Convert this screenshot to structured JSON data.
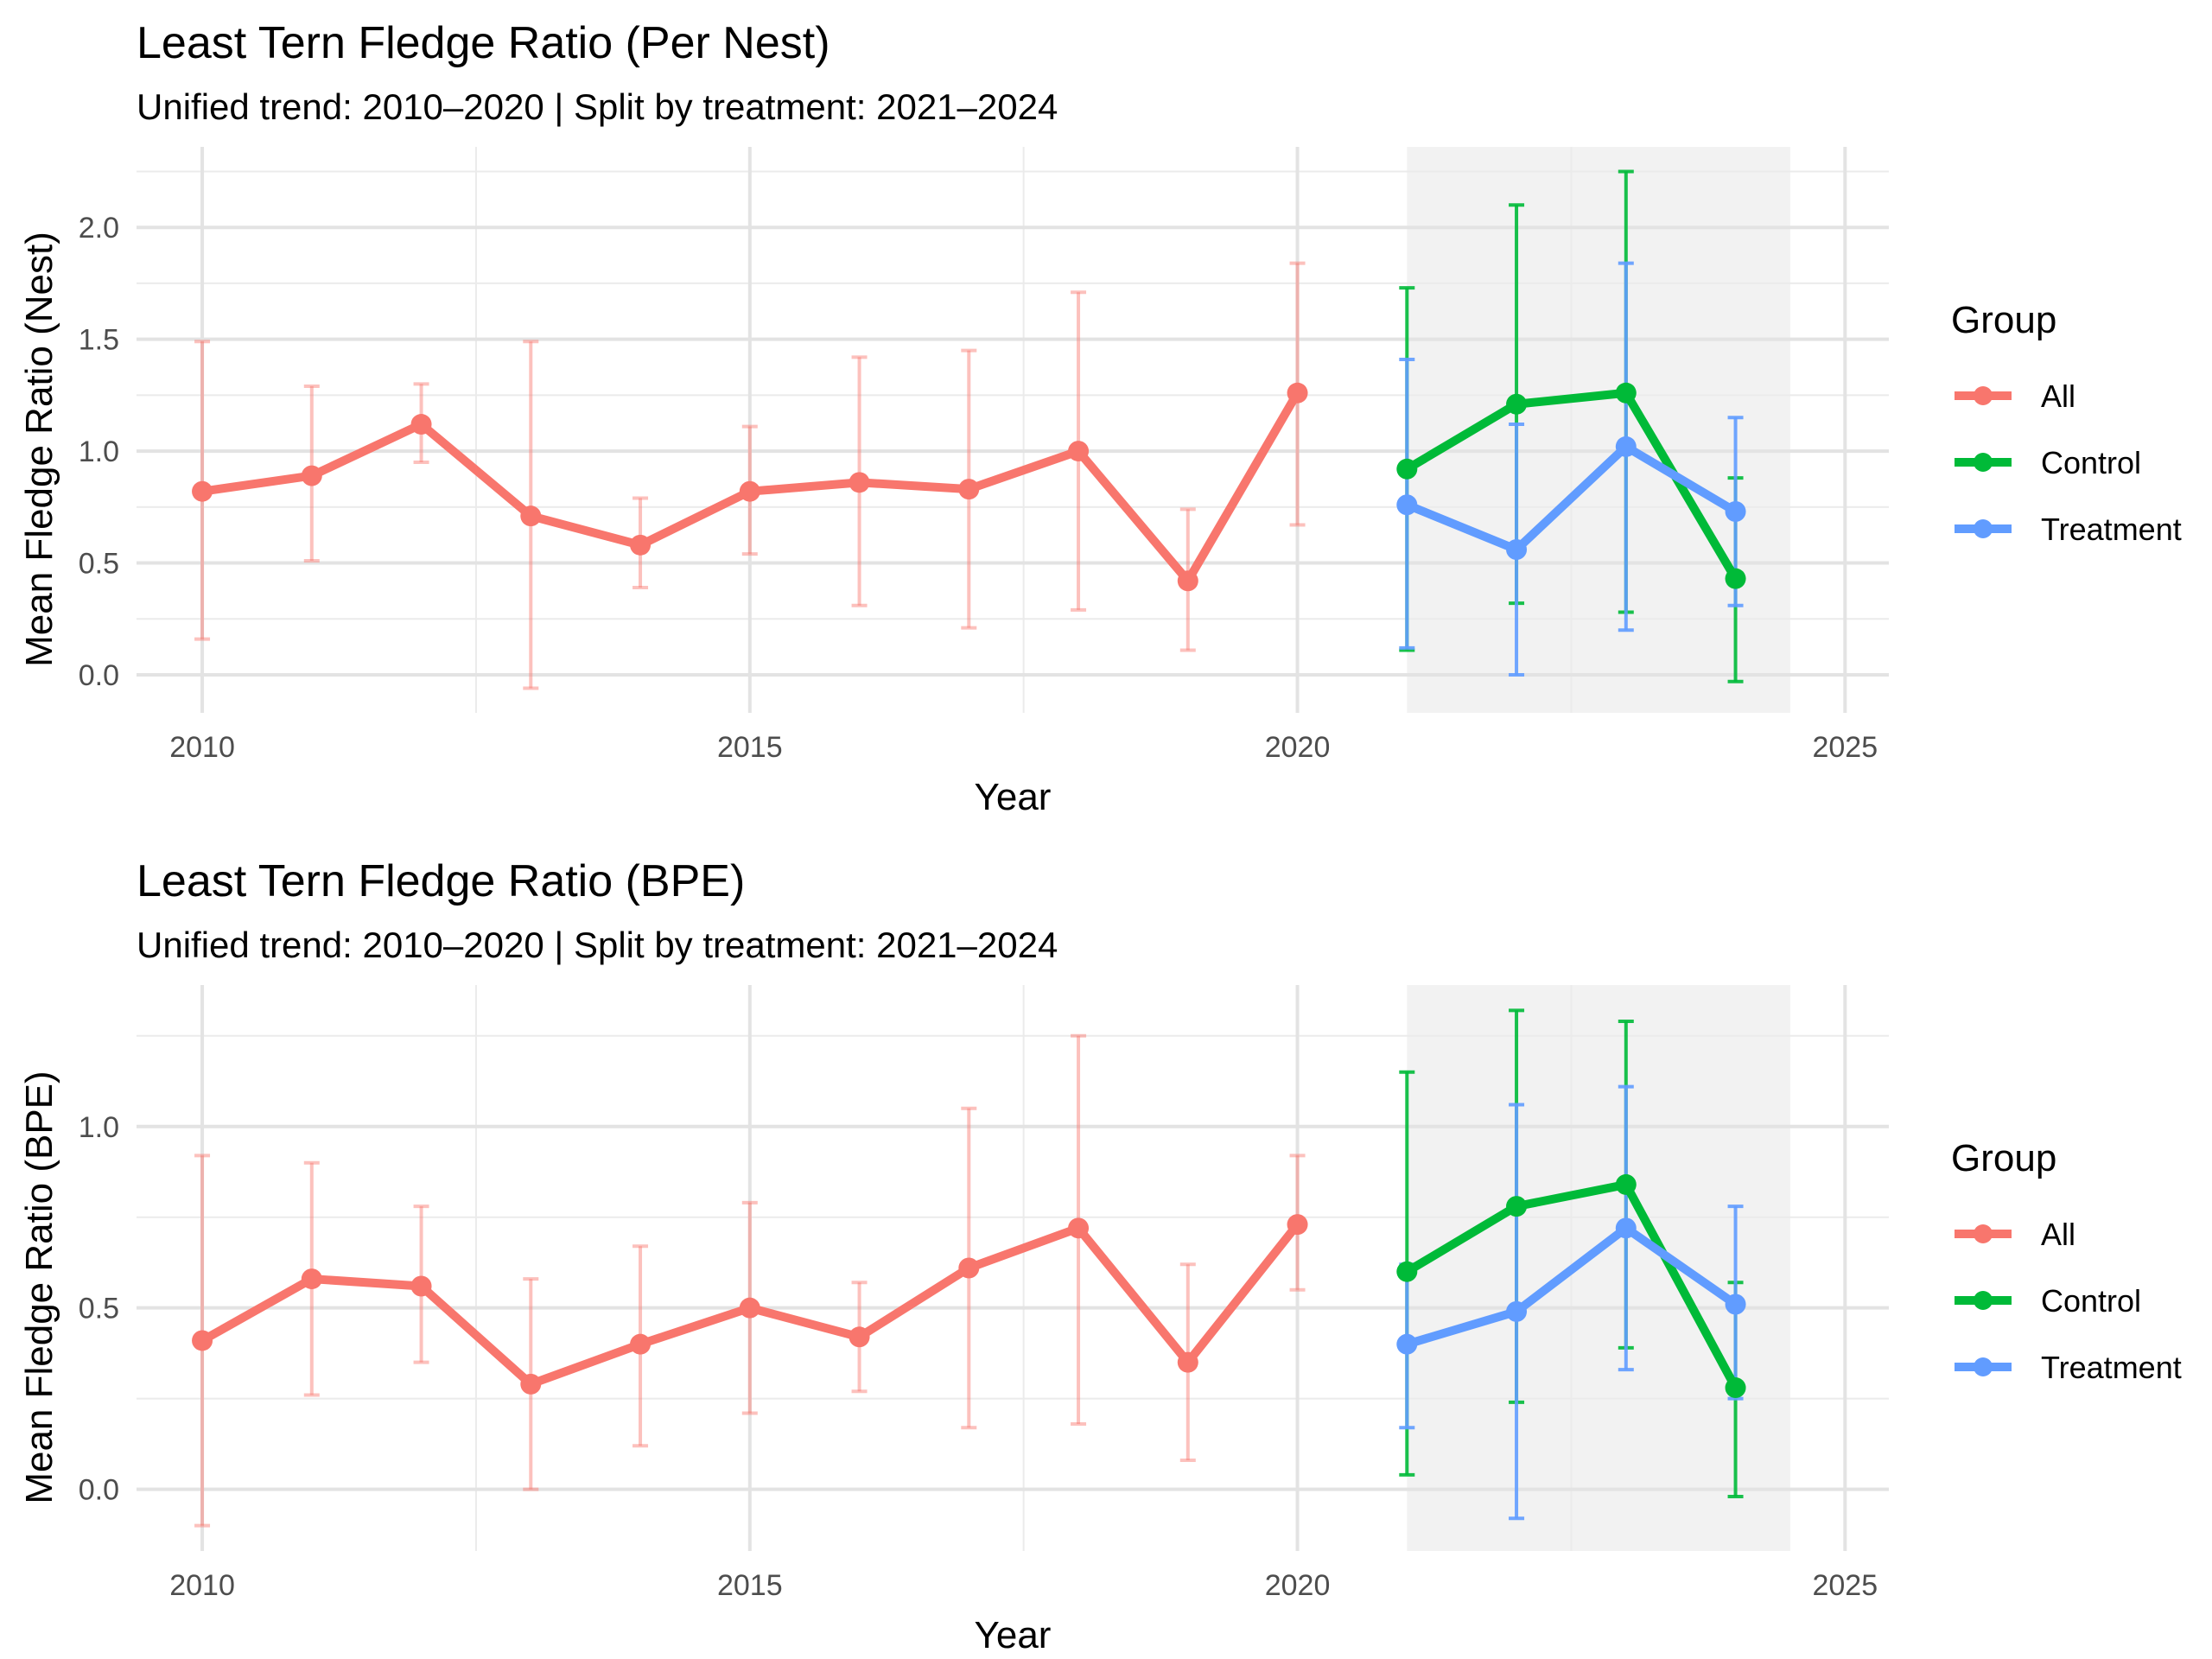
{
  "chart_data": [
    {
      "type": "line",
      "title": "Least Tern Fledge Ratio (Per Nest)",
      "subtitle": "Unified trend: 2010–2020 | Split by treatment: 2021–2024",
      "xlabel": "Year",
      "ylabel": "Mean Fledge Ratio (Nest)",
      "xlim": [
        2009.4,
        2025.4
      ],
      "ylim": [
        -0.17,
        2.36
      ],
      "x_ticks": [
        2010,
        2015,
        2020,
        2025
      ],
      "y_ticks": [
        0.0,
        0.5,
        1.0,
        1.5,
        2.0
      ],
      "y_tick_labels": [
        "0.0",
        "0.5",
        "1.0",
        "1.5",
        "2.0"
      ],
      "shaded_region": [
        2021,
        2024.5
      ],
      "grid": true,
      "legend": {
        "title": "Group",
        "position": "right",
        "entries": [
          "All",
          "Control",
          "Treatment"
        ]
      },
      "series": [
        {
          "name": "All",
          "color": "#F8766D",
          "x": [
            2010,
            2011,
            2012,
            2013,
            2014,
            2015,
            2016,
            2017,
            2018,
            2019,
            2020
          ],
          "y": [
            0.82,
            0.89,
            1.12,
            0.71,
            0.58,
            0.82,
            0.86,
            0.83,
            1.0,
            0.42,
            1.26
          ],
          "ymin": [
            0.16,
            0.51,
            0.95,
            -0.06,
            0.39,
            0.54,
            0.31,
            0.21,
            0.29,
            0.11,
            0.67
          ],
          "ymax": [
            1.49,
            1.29,
            1.3,
            1.49,
            0.79,
            1.11,
            1.42,
            1.45,
            1.71,
            0.74,
            1.84
          ]
        },
        {
          "name": "Control",
          "color": "#00BA38",
          "x": [
            2021,
            2022,
            2023,
            2024
          ],
          "y": [
            0.92,
            1.21,
            1.26,
            0.43
          ],
          "ymin": [
            0.11,
            0.32,
            0.28,
            -0.03
          ],
          "ymax": [
            1.73,
            2.1,
            2.25,
            0.88
          ]
        },
        {
          "name": "Treatment",
          "color": "#619CFF",
          "x": [
            2021,
            2022,
            2023,
            2024
          ],
          "y": [
            0.76,
            0.56,
            1.02,
            0.73
          ],
          "ymin": [
            0.12,
            0.0,
            0.2,
            0.31
          ],
          "ymax": [
            1.41,
            1.12,
            1.84,
            1.15
          ]
        }
      ]
    },
    {
      "type": "line",
      "title": "Least Tern Fledge Ratio (BPE)",
      "subtitle": "Unified trend: 2010–2020 | Split by treatment: 2021–2024",
      "xlabel": "Year",
      "ylabel": "Mean Fledge Ratio (BPE)",
      "xlim": [
        2009.4,
        2025.4
      ],
      "ylim": [
        -0.17,
        1.39
      ],
      "x_ticks": [
        2010,
        2015,
        2020,
        2025
      ],
      "y_ticks": [
        0.0,
        0.5,
        1.0
      ],
      "y_tick_labels": [
        "0.0",
        "0.5",
        "1.0"
      ],
      "shaded_region": [
        2021,
        2024.5
      ],
      "grid": true,
      "legend": {
        "title": "Group",
        "position": "right",
        "entries": [
          "All",
          "Control",
          "Treatment"
        ]
      },
      "series": [
        {
          "name": "All",
          "color": "#F8766D",
          "x": [
            2010,
            2011,
            2012,
            2013,
            2014,
            2015,
            2016,
            2017,
            2018,
            2019,
            2020
          ],
          "y": [
            0.41,
            0.58,
            0.56,
            0.29,
            0.4,
            0.5,
            0.42,
            0.61,
            0.72,
            0.35,
            0.73
          ],
          "ymin": [
            -0.1,
            0.26,
            0.35,
            0.0,
            0.12,
            0.21,
            0.27,
            0.17,
            0.18,
            0.08,
            0.55
          ],
          "ymax": [
            0.92,
            0.9,
            0.78,
            0.58,
            0.67,
            0.79,
            0.57,
            1.05,
            1.25,
            0.62,
            0.92
          ]
        },
        {
          "name": "Control",
          "color": "#00BA38",
          "x": [
            2021,
            2022,
            2023,
            2024
          ],
          "y": [
            0.6,
            0.78,
            0.84,
            0.28
          ],
          "ymin": [
            0.04,
            0.24,
            0.39,
            -0.02
          ],
          "ymax": [
            1.15,
            1.32,
            1.29,
            0.57
          ]
        },
        {
          "name": "Treatment",
          "color": "#619CFF",
          "x": [
            2021,
            2022,
            2023,
            2024
          ],
          "y": [
            0.4,
            0.49,
            0.72,
            0.51
          ],
          "ymin": [
            0.17,
            -0.08,
            0.33,
            0.25
          ],
          "ymax": [
            0.62,
            1.06,
            1.11,
            0.78
          ]
        }
      ]
    }
  ]
}
